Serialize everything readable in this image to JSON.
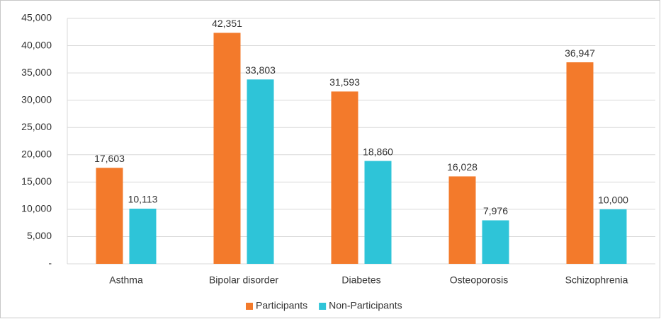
{
  "chart_data": {
    "type": "bar",
    "categories": [
      "Asthma",
      "Bipolar disorder",
      "Diabetes",
      "Osteoporosis",
      "Schizophrenia"
    ],
    "series": [
      {
        "name": "Participants",
        "color": "#f37a2b",
        "values": [
          17603,
          42351,
          31593,
          16028,
          36947
        ],
        "value_labels": [
          "17,603",
          "42,351",
          "31,593",
          "16,028",
          "36,947"
        ]
      },
      {
        "name": "Non-Participants",
        "color": "#2ec4d8",
        "values": [
          10113,
          33803,
          18860,
          7976,
          10000
        ],
        "value_labels": [
          "10,113",
          "33,803",
          "18,860",
          "7,976",
          "10,000"
        ]
      }
    ],
    "ylim": [
      0,
      45000
    ],
    "yticks": [
      {
        "value": 0,
        "label": "-"
      },
      {
        "value": 5000,
        "label": "5,000"
      },
      {
        "value": 10000,
        "label": "10,000"
      },
      {
        "value": 15000,
        "label": "15,000"
      },
      {
        "value": 20000,
        "label": "20,000"
      },
      {
        "value": 25000,
        "label": "25,000"
      },
      {
        "value": 30000,
        "label": "30,000"
      },
      {
        "value": 35000,
        "label": "35,000"
      },
      {
        "value": 40000,
        "label": "40,000"
      },
      {
        "value": 45000,
        "label": "45,000"
      }
    ],
    "grid": true,
    "legend": "bottom"
  }
}
